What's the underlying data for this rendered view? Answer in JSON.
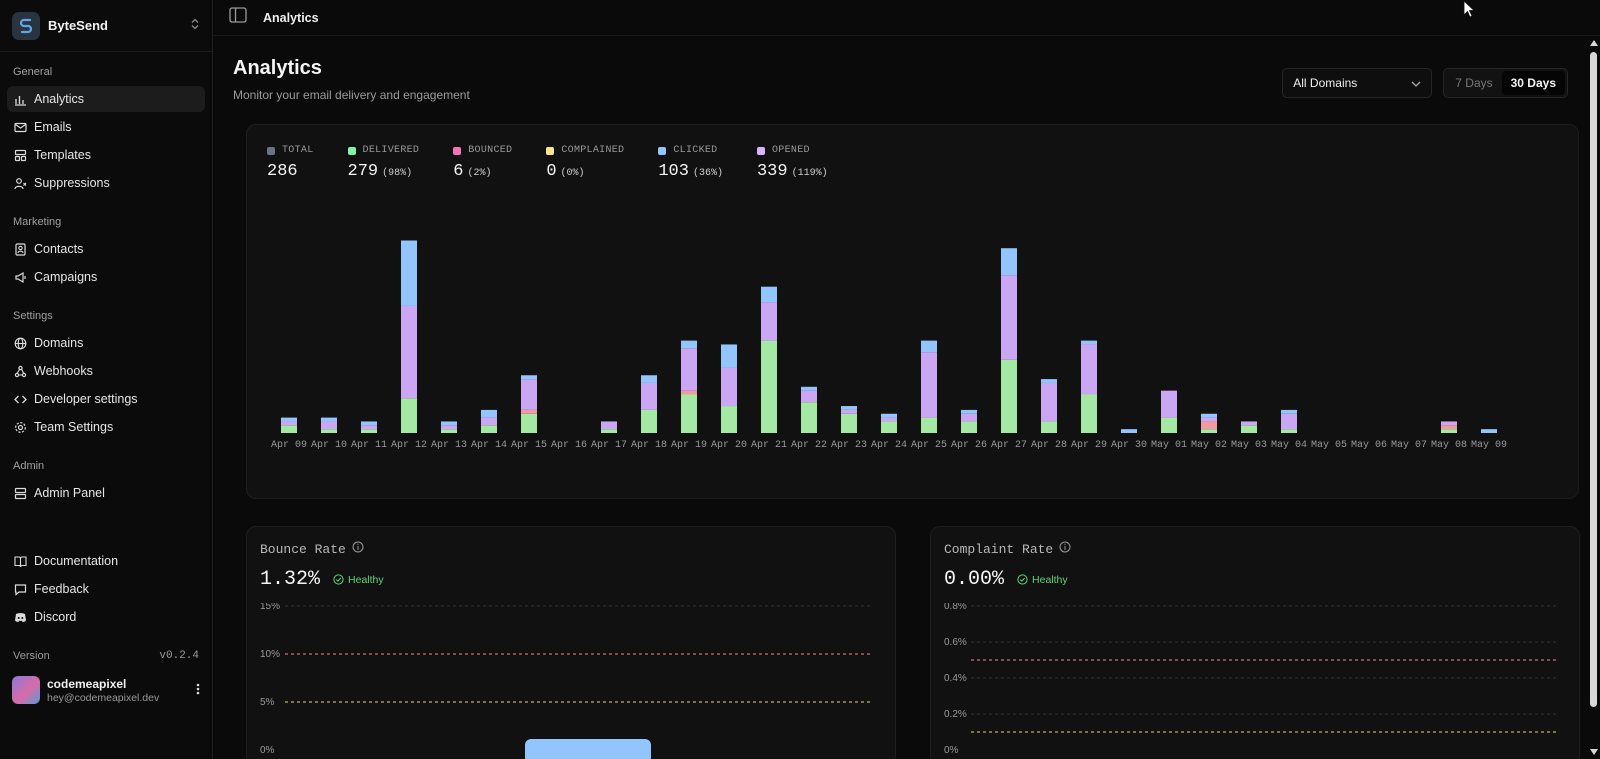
{
  "brand": {
    "name": "ByteSend"
  },
  "sidebar": {
    "groups": [
      {
        "label": "General",
        "items": [
          {
            "label": "Analytics",
            "icon": "bar-chart-icon",
            "active": true
          },
          {
            "label": "Emails",
            "icon": "mail-icon"
          },
          {
            "label": "Templates",
            "icon": "layout-icon"
          },
          {
            "label": "Suppressions",
            "icon": "user-x-icon"
          }
        ]
      },
      {
        "label": "Marketing",
        "items": [
          {
            "label": "Contacts",
            "icon": "contact-book-icon"
          },
          {
            "label": "Campaigns",
            "icon": "megaphone-icon"
          }
        ]
      },
      {
        "label": "Settings",
        "items": [
          {
            "label": "Domains",
            "icon": "globe-icon"
          },
          {
            "label": "Webhooks",
            "icon": "webhook-icon"
          },
          {
            "label": "Developer settings",
            "icon": "code-icon"
          },
          {
            "label": "Team Settings",
            "icon": "gear-icon"
          }
        ]
      },
      {
        "label": "Admin",
        "items": [
          {
            "label": "Admin Panel",
            "icon": "server-icon"
          }
        ]
      }
    ],
    "footer_links": [
      {
        "label": "Documentation",
        "icon": "book-icon"
      },
      {
        "label": "Feedback",
        "icon": "message-icon"
      },
      {
        "label": "Discord",
        "icon": "discord-icon"
      }
    ],
    "version_label": "Version",
    "version": "v0.2.4",
    "user": {
      "name": "codemeapixel",
      "email": "hey@codemeapixel.dev"
    }
  },
  "topbar": {
    "breadcrumb": "Analytics"
  },
  "page": {
    "title": "Analytics",
    "subtitle": "Monitor your email delivery and engagement",
    "domain_select": "All Domains",
    "range_options": [
      "7 Days",
      "30 Days"
    ],
    "range_selected": "30 Days"
  },
  "stats": [
    {
      "label": "TOTAL",
      "value": "286",
      "pct": "",
      "color": "#6b7280"
    },
    {
      "label": "DELIVERED",
      "value": "279",
      "pct": "(98%)",
      "color": "#86efac"
    },
    {
      "label": "BOUNCED",
      "value": "6",
      "pct": "(2%)",
      "color": "#f472b6"
    },
    {
      "label": "COMPLAINED",
      "value": "0",
      "pct": "(0%)",
      "color": "#fde68a"
    },
    {
      "label": "CLICKED",
      "value": "103",
      "pct": "(36%)",
      "color": "#93c5fd"
    },
    {
      "label": "OPENED",
      "value": "339",
      "pct": "(119%)",
      "color": "#d8b4fe"
    }
  ],
  "chart_data": {
    "type": "bar",
    "stacked": true,
    "categories": [
      "Apr 09",
      "Apr 10",
      "Apr 11",
      "Apr 12",
      "Apr 13",
      "Apr 14",
      "Apr 15",
      "Apr 16",
      "Apr 17",
      "Apr 18",
      "Apr 19",
      "Apr 20",
      "Apr 21",
      "Apr 22",
      "Apr 23",
      "Apr 24",
      "Apr 25",
      "Apr 26",
      "Apr 27",
      "Apr 28",
      "Apr 29",
      "Apr 30",
      "May 01",
      "May 02",
      "May 03",
      "May 04",
      "May 05",
      "May 06",
      "May 07",
      "May 08",
      "May 09"
    ],
    "series": [
      {
        "name": "DELIVERED",
        "color": "#a3e9a4",
        "values": [
          2,
          1,
          1,
          9,
          1,
          2,
          5,
          0,
          1,
          6,
          10,
          7,
          24,
          8,
          5,
          3,
          4,
          3,
          19,
          3,
          10,
          0,
          4,
          1,
          2,
          1,
          0,
          0,
          0,
          1,
          0
        ]
      },
      {
        "name": "BOUNCED",
        "color": "#f29aa0",
        "values": [
          0,
          0,
          0,
          0,
          0,
          0,
          1,
          0,
          0,
          0,
          1,
          0,
          0,
          0,
          0,
          0,
          0,
          0,
          0,
          0,
          0,
          0,
          0,
          2,
          0,
          0,
          0,
          0,
          0,
          1,
          0
        ]
      },
      {
        "name": "OPENED",
        "color": "#cba6f3",
        "values": [
          1,
          2,
          1,
          24,
          1,
          2,
          8,
          0,
          2,
          7,
          11,
          10,
          10,
          3,
          1,
          1,
          17,
          2,
          22,
          10,
          13,
          0,
          7,
          1,
          1,
          4,
          0,
          0,
          0,
          1,
          0
        ]
      },
      {
        "name": "CLICKED",
        "color": "#93c5fd",
        "values": [
          1,
          1,
          1,
          17,
          1,
          2,
          1,
          0,
          0,
          2,
          2,
          6,
          4,
          1,
          1,
          1,
          3,
          1,
          7,
          1,
          1,
          1,
          0,
          1,
          0,
          1,
          0,
          0,
          0,
          0,
          1
        ]
      }
    ],
    "grid": false,
    "legend": "top"
  },
  "bounce": {
    "title": "Bounce Rate",
    "value": "1.32%",
    "status": "Healthy",
    "ticks": [
      "15%",
      "10%",
      "5%",
      "0%"
    ]
  },
  "complaint": {
    "title": "Complaint Rate",
    "value": "0.00%",
    "status": "Healthy",
    "ticks": [
      "0.8%",
      "0.6%",
      "0.4%",
      "0.2%",
      "0%"
    ]
  }
}
